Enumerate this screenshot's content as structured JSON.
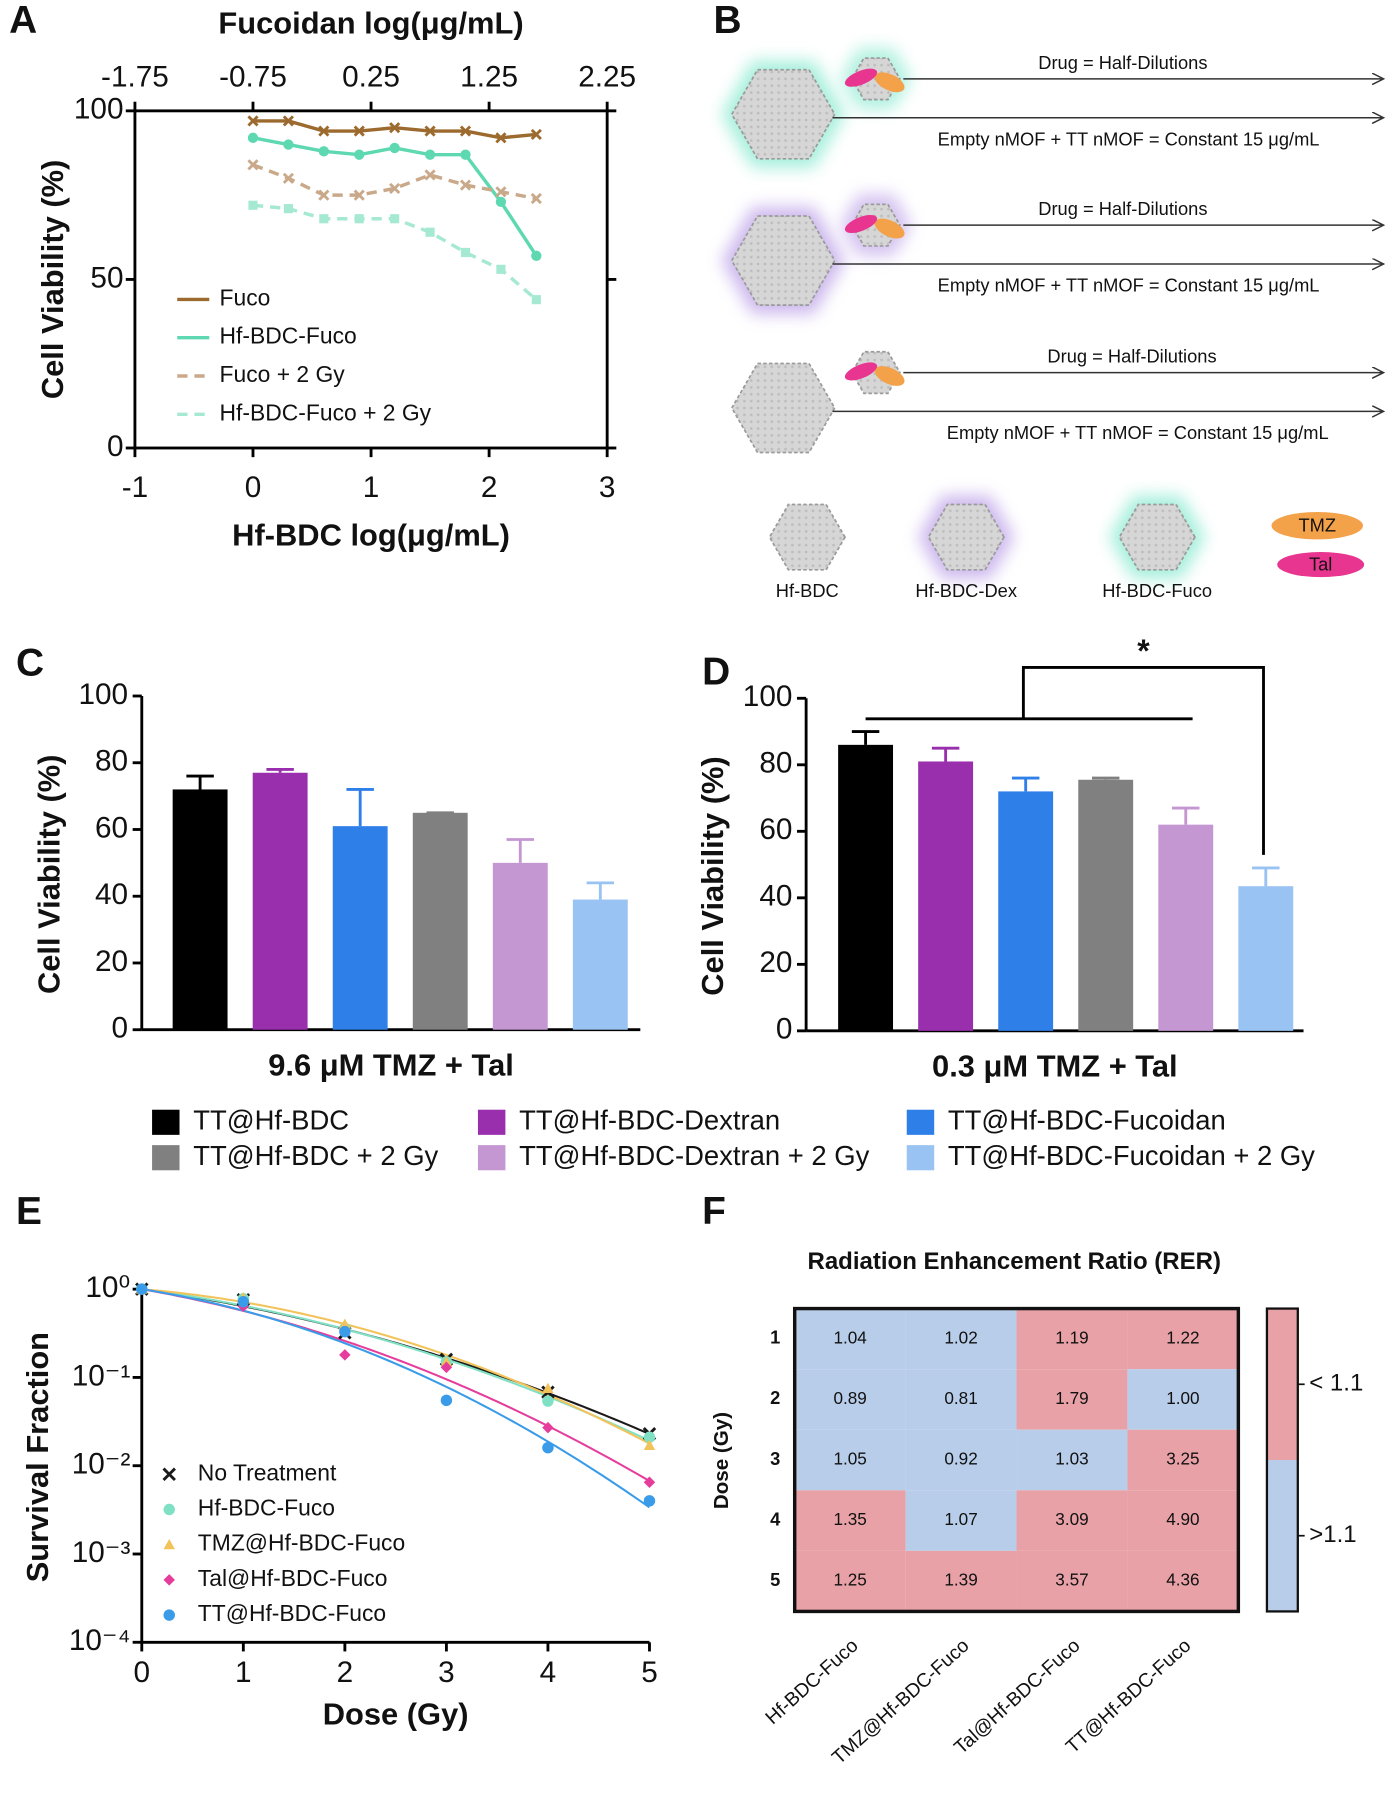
{
  "chart_data": [
    {
      "panel": "A",
      "type": "line",
      "x2label": "Fucoidan log(μg/mL)",
      "xlabel": "Hf-BDC log(μg/mL)",
      "ylabel": "Cell Viability (%)",
      "x": [
        0,
        0.3,
        0.6,
        0.9,
        1.2,
        1.5,
        1.8,
        2.1,
        2.4
      ],
      "xlim": [
        -1,
        3
      ],
      "xticks": [
        -1,
        0,
        1,
        2,
        3
      ],
      "x2lim": [
        -1.75,
        2.25
      ],
      "x2ticks": [
        -1.75,
        -0.75,
        0.25,
        1.25,
        2.25
      ],
      "ylim": [
        0,
        100
      ],
      "yticks": [
        0,
        50,
        100
      ],
      "legend": "lower left",
      "series": [
        {
          "name": "Fuco",
          "color": "#9c6a2e",
          "marker": "x",
          "dash": false,
          "values": [
            97,
            97,
            94,
            94,
            95,
            94,
            94,
            92,
            93
          ]
        },
        {
          "name": "Hf-BDC-Fuco",
          "color": "#5ed8b0",
          "marker": "circle",
          "dash": false,
          "values": [
            92,
            90,
            88,
            87,
            89,
            87,
            87,
            73,
            57
          ]
        },
        {
          "name": "Fuco + 2 Gy",
          "color": "#c9a98a",
          "marker": "x",
          "dash": true,
          "values": [
            84,
            80,
            75,
            75,
            77,
            81,
            78,
            76,
            74
          ]
        },
        {
          "name": "Hf-BDC-Fuco + 2 Gy",
          "color": "#a6e9d3",
          "marker": "square",
          "dash": true,
          "values": [
            72,
            71,
            68,
            68,
            68,
            64,
            58,
            53,
            44
          ]
        }
      ]
    },
    {
      "panel": "C",
      "type": "bar",
      "xlabel": "9.6 μM TMZ + Tal",
      "ylabel": "Cell Viability (%)",
      "categories": [
        "TT@Hf-BDC",
        "TT@Hf-BDC-Dextran",
        "TT@Hf-BDC-Fucoidan",
        "TT@Hf-BDC + 2 Gy",
        "TT@Hf-BDC-Dextran + 2 Gy",
        "TT@Hf-BDC-Fucoidan + 2 Gy"
      ],
      "colors": [
        "#000000",
        "#9a2fae",
        "#2f7fe8",
        "#808080",
        "#c496d2",
        "#98c3f2"
      ],
      "values": [
        72,
        77,
        61,
        65,
        50,
        39
      ],
      "errors": [
        4,
        1,
        11,
        0,
        7,
        5
      ],
      "ylim": [
        0,
        100
      ],
      "yticks": [
        0,
        20,
        40,
        60,
        80,
        100
      ]
    },
    {
      "panel": "D",
      "type": "bar",
      "xlabel": "0.3 μM TMZ + Tal",
      "ylabel": "Cell Viability (%)",
      "values": [
        86,
        81,
        72,
        75.5,
        62,
        43.5
      ],
      "errors": [
        4,
        4,
        4,
        0.5,
        5,
        5.5
      ],
      "ylim": [
        0,
        100
      ],
      "yticks": [
        0,
        20,
        40,
        60,
        80,
        100
      ],
      "annotation": "*"
    },
    {
      "panel": "E",
      "type": "scatter",
      "xlabel": "Dose (Gy)",
      "ylabel": "Survival Fraction",
      "log_y": true,
      "legend": "lower left",
      "x": [
        0,
        1,
        2,
        3,
        4,
        5
      ],
      "xlim": [
        0,
        5
      ],
      "xticks": [
        0,
        1,
        2,
        3,
        4,
        5
      ],
      "ylim": [
        0.0001,
        1
      ],
      "yticks": [
        {
          "value": 1,
          "label": "10⁰"
        },
        {
          "value": 0.1,
          "label": "10⁻¹"
        },
        {
          "value": 0.01,
          "label": "10⁻²"
        },
        {
          "value": 0.001,
          "label": "10⁻³"
        },
        {
          "value": 0.0001,
          "label": "10⁻⁴"
        }
      ],
      "series": [
        {
          "name": "No Treatment",
          "color": "#1a1a1a",
          "marker": "x",
          "values": [
            1,
            0.76,
            0.32,
            0.16,
            0.068,
            0.023
          ]
        },
        {
          "name": "Hf-BDC-Fuco",
          "color": "#7fe0c4",
          "marker": "circle",
          "values": [
            1,
            0.78,
            0.36,
            0.15,
            0.054,
            0.021
          ]
        },
        {
          "name": "TMZ@Hf-BDC-Fuco",
          "color": "#f2c35a",
          "marker": "triangle",
          "values": [
            1,
            0.8,
            0.4,
            0.15,
            0.075,
            0.017
          ]
        },
        {
          "name": "Tal@Hf-BDC-Fuco",
          "color": "#e63c9b",
          "marker": "diamond",
          "values": [
            1,
            0.64,
            0.18,
            0.13,
            0.027,
            0.0065
          ]
        },
        {
          "name": "TT@Hf-BDC-Fuco",
          "color": "#3a9be8",
          "marker": "circle",
          "values": [
            1,
            0.72,
            0.33,
            0.055,
            0.016,
            0.004
          ]
        }
      ]
    },
    {
      "panel": "F",
      "type": "heatmap",
      "title": "Radiation Enhancement Ratio (RER)",
      "ylabel": "Dose (Gy)",
      "rows": [
        "1",
        "2",
        "3",
        "4",
        "5"
      ],
      "columns": [
        "Hf-BDC-Fuco",
        "TMZ@Hf-BDC-Fuco",
        "Tal@Hf-BDC-Fuco",
        "TT@Hf-BDC-Fuco"
      ],
      "values": [
        [
          1.04,
          1.02,
          1.19,
          1.22
        ],
        [
          0.89,
          0.81,
          1.79,
          1.0
        ],
        [
          1.05,
          0.92,
          1.03,
          3.25
        ],
        [
          1.35,
          1.07,
          3.09,
          4.9
        ],
        [
          1.25,
          1.39,
          3.57,
          4.36
        ]
      ],
      "value_labels": [
        [
          "1.04",
          "1.02",
          "1.19",
          "1.22"
        ],
        [
          "0.89",
          "0.81",
          "1.79",
          "1.00"
        ],
        [
          "1.05",
          "0.92",
          "1.03",
          "3.25"
        ],
        [
          "1.35",
          "1.07",
          "3.09",
          "4.90"
        ],
        [
          "1.25",
          "1.39",
          "3.57",
          "4.36"
        ]
      ],
      "threshold": 1.1,
      "colorbar": {
        "labels": [
          "< 1.1",
          ">1.1"
        ],
        "colors": [
          "#e8a2a7",
          "#b8cde9"
        ]
      }
    }
  ],
  "diagram": {
    "panel": "B",
    "rows": [
      {
        "top": "Drug = Half-Dilutions",
        "bottom": "Empty nMOF + TT nMOF = Constant 15 μg/mL"
      },
      {
        "top": "Drug = Half-Dilutions",
        "bottom": "Empty nMOF + TT nMOF = Constant 15 μg/mL"
      },
      {
        "top": "Drug = Half-Dilutions",
        "bottom": "Empty nMOF + TT nMOF = Constant 15 μg/mL"
      }
    ],
    "legend": [
      "Hf-BDC",
      "Hf-BDC-Dex",
      "Hf-BDC-Fuco",
      "TMZ",
      "Tal"
    ]
  }
}
